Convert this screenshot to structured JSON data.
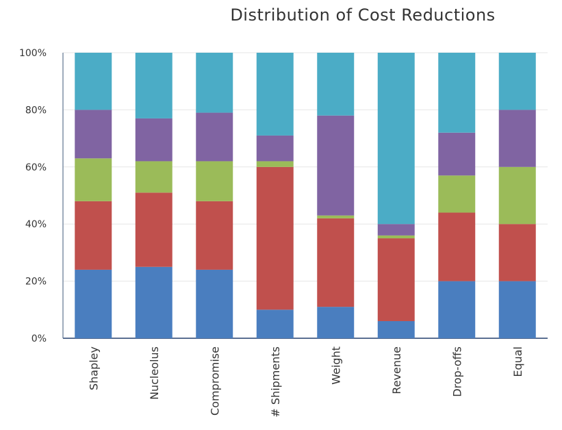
{
  "chart_data": {
    "type": "bar",
    "stacked": true,
    "title": "Distribution of Cost Reductions",
    "xlabel": "",
    "ylabel": "",
    "ylim": [
      0,
      100
    ],
    "y_ticks": [
      "0%",
      "20%",
      "40%",
      "60%",
      "80%",
      "100%"
    ],
    "categories": [
      "Shapley",
      "Nucleolus",
      "Compromise",
      "# Shipments",
      "Weight",
      "Revenue",
      "Drop-offs",
      "Equal"
    ],
    "grid": true,
    "legend": "none",
    "series": [
      {
        "color": "#4a7ebf",
        "values": [
          24,
          25,
          24,
          10,
          11,
          6,
          20,
          20
        ]
      },
      {
        "color": "#c0504d",
        "values": [
          24,
          26,
          24,
          50,
          31,
          29,
          24,
          20
        ]
      },
      {
        "color": "#9bbb59",
        "values": [
          15,
          11,
          14,
          2,
          1,
          1,
          13,
          20
        ]
      },
      {
        "color": "#8064a2",
        "values": [
          17,
          15,
          17,
          9,
          35,
          4,
          15,
          20
        ]
      },
      {
        "color": "#4bacc6",
        "values": [
          20,
          23,
          21,
          29,
          22,
          60,
          28,
          20
        ]
      }
    ]
  }
}
